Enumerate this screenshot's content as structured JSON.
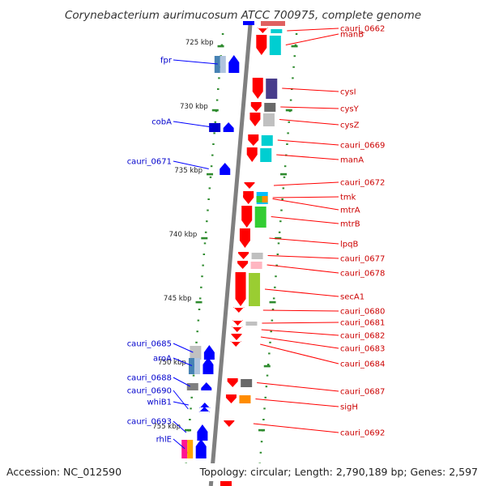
{
  "title": "Corynebacterium aurimucosum ATCC 700975, complete genome",
  "accession": "Accession: NC_012590",
  "summary": "Topology: circular; Length: 2,790,189 bp; Genes: 2,597",
  "colors": {
    "forward": "#ff0000",
    "reverse": "#0000ff",
    "axis": "#808080",
    "tick": "#2e8b2e"
  },
  "scale": {
    "unit": "kbp",
    "ticks": [
      {
        "kbp": 725,
        "label": "725 kbp"
      },
      {
        "kbp": 730,
        "label": "730 kbp"
      },
      {
        "kbp": 735,
        "label": "735 kbp"
      },
      {
        "kbp": 740,
        "label": "740 kbp"
      },
      {
        "kbp": 745,
        "label": "745 kbp"
      },
      {
        "kbp": 750,
        "label": "750 kbp"
      },
      {
        "kbp": 755,
        "label": "755 kbp"
      }
    ]
  },
  "genes": {
    "reverse_strand": [
      {
        "label": "fpr",
        "cog": [
          "#4682b4",
          "#b0c4de"
        ]
      },
      {
        "label": "cobA",
        "cog": [
          "#0000cd"
        ]
      },
      {
        "label": "cauri_0671",
        "cog": []
      },
      {
        "label": "cauri_0685",
        "cog": [
          "#c0c0c0"
        ]
      },
      {
        "label": "aroA",
        "cog": [
          "#4682b4",
          "#b0c4de"
        ]
      },
      {
        "label": "cauri_0688",
        "cog": [
          "#808080"
        ]
      },
      {
        "label": "cauri_0690",
        "cog": []
      },
      {
        "label": "whiB1",
        "cog": []
      },
      {
        "label": "cauri_0693",
        "cog": []
      },
      {
        "label": "rhlE",
        "cog": [
          "#ff1493",
          "#ffa500"
        ]
      }
    ],
    "forward_strand": [
      {
        "label": "cauri_0662",
        "cog": [
          "#00ced1"
        ]
      },
      {
        "label": "manB",
        "cog": [
          "#00ced1"
        ]
      },
      {
        "label": "cysI",
        "cog": [
          "#483d8b"
        ]
      },
      {
        "label": "cysY",
        "cog": [
          "#696969"
        ]
      },
      {
        "label": "cysZ",
        "cog": [
          "#c0c0c0"
        ]
      },
      {
        "label": "cauri_0669",
        "cog": [
          "#00ced1"
        ]
      },
      {
        "label": "manA",
        "cog": [
          "#00ced1"
        ]
      },
      {
        "label": "cauri_0672",
        "cog": []
      },
      {
        "label": "tmk",
        "cog": [
          "#00bfff"
        ]
      },
      {
        "label": "mtrA",
        "cog": [
          "#32cd32",
          "#ff8c00"
        ]
      },
      {
        "label": "mtrB",
        "cog": [
          "#32cd32"
        ]
      },
      {
        "label": "lpqB",
        "cog": []
      },
      {
        "label": "cauri_0677",
        "cog": [
          "#c0c0c0"
        ]
      },
      {
        "label": "cauri_0678",
        "cog": [
          "#ffb6c1"
        ]
      },
      {
        "label": "secA1",
        "cog": [
          "#9acd32"
        ]
      },
      {
        "label": "cauri_0680",
        "cog": []
      },
      {
        "label": "cauri_0681",
        "cog": [
          "#c0c0c0"
        ]
      },
      {
        "label": "cauri_0682",
        "cog": []
      },
      {
        "label": "cauri_0683",
        "cog": []
      },
      {
        "label": "cauri_0684",
        "cog": []
      },
      {
        "label": "cauri_0687",
        "cog": [
          "#696969"
        ]
      },
      {
        "label": "sigH",
        "cog": [
          "#ff8c00"
        ]
      },
      {
        "label": "cauri_0692",
        "cog": []
      }
    ]
  }
}
